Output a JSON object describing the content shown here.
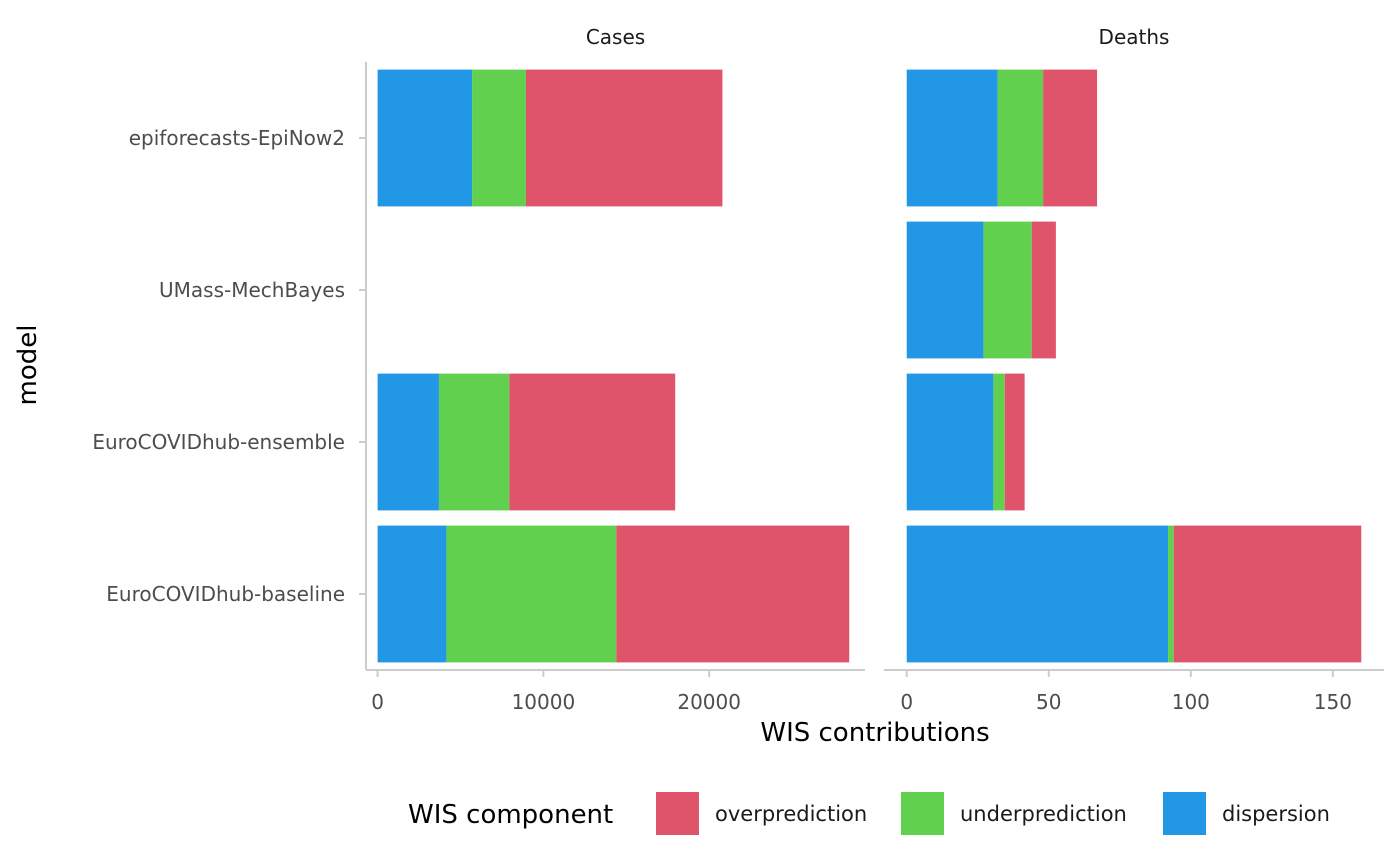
{
  "chart_data": {
    "type": "bar",
    "orientation": "horizontal",
    "stacked": true,
    "xlabel": "WIS contributions",
    "ylabel": "model",
    "categories": [
      "epiforecasts-EpiNow2",
      "UMass-MechBayes",
      "EuroCOVIDhub-ensemble",
      "EuroCOVIDhub-baseline"
    ],
    "legend": {
      "title": "WIS component",
      "position": "bottom",
      "entries": [
        {
          "label": "overprediction",
          "color": "#DF536B"
        },
        {
          "label": "underprediction",
          "color": "#61D04F"
        },
        {
          "label": "dispersion",
          "color": "#2297E6"
        }
      ]
    },
    "stack_order": [
      "dispersion",
      "underprediction",
      "overprediction"
    ],
    "colors": {
      "overprediction": "#DF536B",
      "underprediction": "#61D04F",
      "dispersion": "#2297E6"
    },
    "panels": [
      {
        "title": "Cases",
        "xlim": [
          -700,
          29400
        ],
        "xticks": [
          0,
          10000,
          20000
        ],
        "xtick_labels": [
          "0",
          "10000",
          "20000"
        ],
        "values": {
          "epiforecasts-EpiNow2": {
            "dispersion": 5700,
            "underprediction": 3250,
            "overprediction": 11850
          },
          "UMass-MechBayes": null,
          "EuroCOVIDhub-ensemble": {
            "dispersion": 3700,
            "underprediction": 4250,
            "overprediction": 10000
          },
          "EuroCOVIDhub-baseline": {
            "dispersion": 4150,
            "underprediction": 10250,
            "overprediction": 14050
          }
        }
      },
      {
        "title": "Deaths",
        "xlim": [
          -8,
          168
        ],
        "xticks": [
          0,
          50,
          100,
          150
        ],
        "xtick_labels": [
          "0",
          "50",
          "100",
          "150"
        ],
        "values": {
          "epiforecasts-EpiNow2": {
            "dispersion": 32,
            "underprediction": 16,
            "overprediction": 19
          },
          "UMass-MechBayes": {
            "dispersion": 27,
            "underprediction": 17,
            "overprediction": 8.5
          },
          "EuroCOVIDhub-ensemble": {
            "dispersion": 30.5,
            "underprediction": 4,
            "overprediction": 7
          },
          "EuroCOVIDhub-baseline": {
            "dispersion": 92,
            "underprediction": 2,
            "overprediction": 66
          }
        }
      }
    ]
  }
}
